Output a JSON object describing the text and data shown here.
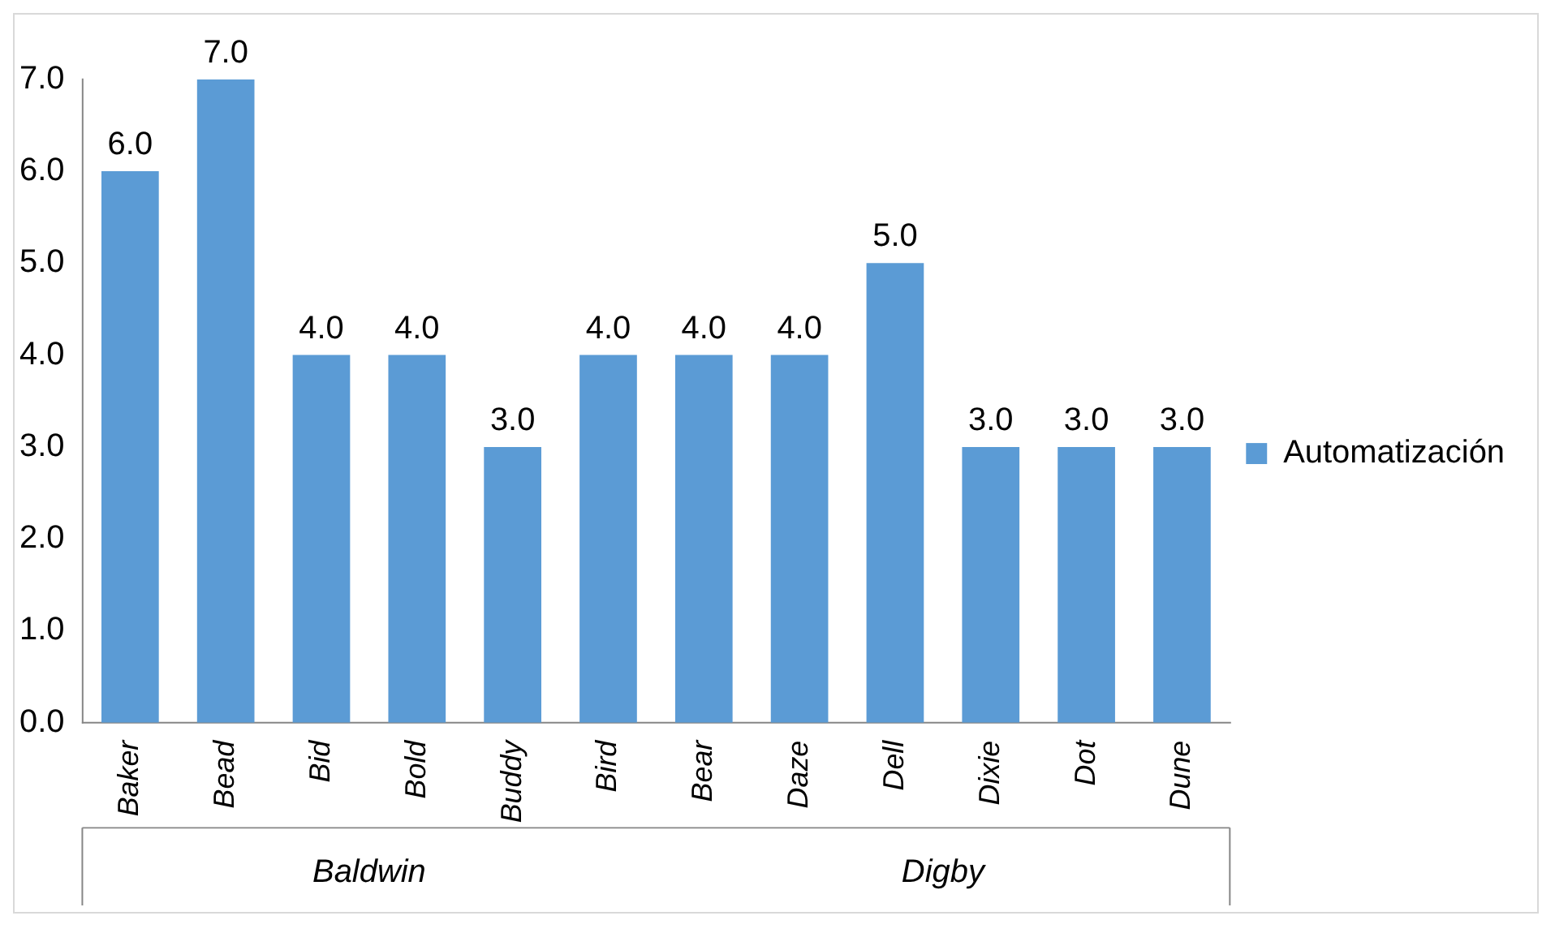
{
  "chart_data": {
    "type": "bar",
    "categories": [
      "Baker",
      "Bead",
      "Bid",
      "Bold",
      "Buddy",
      "Bird",
      "Bear",
      "Daze",
      "Dell",
      "Dixie",
      "Dot",
      "Dune"
    ],
    "series": [
      {
        "name": "Automatización",
        "color": "#5b9bd5",
        "values": [
          6,
          7,
          4,
          4,
          3,
          4,
          4,
          4,
          5,
          3,
          3,
          3
        ],
        "value_labels": [
          "6.0",
          "7.0",
          "4.0",
          "4.0",
          "3.0",
          "4.0",
          "4.0",
          "4.0",
          "5.0",
          "3.0",
          "3.0",
          "3.0"
        ]
      }
    ],
    "ylim": [
      0,
      7
    ],
    "yticks": [
      {
        "value": 0,
        "label": "0.0"
      },
      {
        "value": 1,
        "label": "1.0"
      },
      {
        "value": 2,
        "label": "2.0"
      },
      {
        "value": 3,
        "label": "3.0"
      },
      {
        "value": 4,
        "label": "4.0"
      },
      {
        "value": 5,
        "label": "5.0"
      },
      {
        "value": 6,
        "label": "6.0"
      },
      {
        "value": 7,
        "label": "7.0"
      }
    ],
    "annotations": [
      "Baldwin",
      "Digby"
    ],
    "grid": false,
    "legend": "right"
  }
}
